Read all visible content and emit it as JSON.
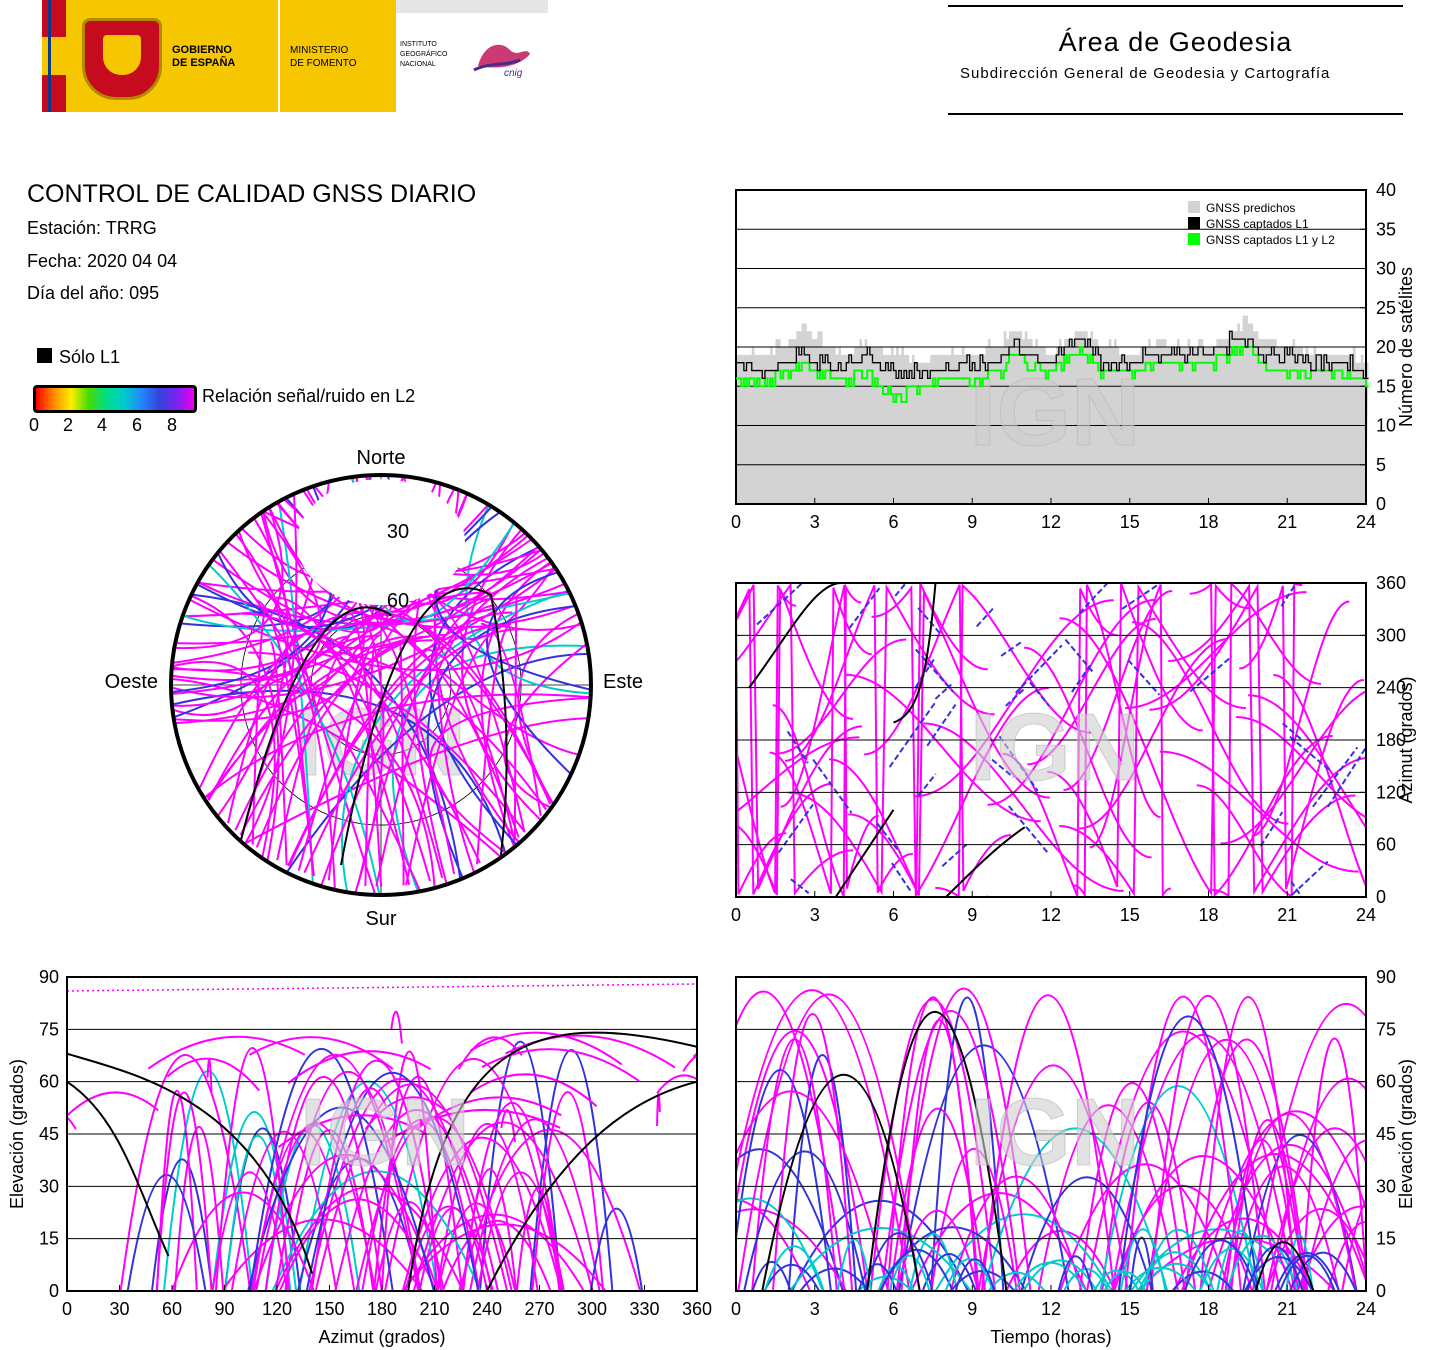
{
  "header": {
    "gob_line1": "GOBIERNO",
    "gob_line2": "DE ESPAÑA",
    "min_line1": "MINISTERIO",
    "min_line2": "DE FOMENTO",
    "ign_line1": "INSTITUTO",
    "ign_line2": "GEOGRÁFICO",
    "ign_line3": "NACIONAL",
    "cnig": "cnig",
    "area_title": "Área de Geodesia",
    "area_subtitle": "Subdirección General de Geodesia y Cartografía"
  },
  "report": {
    "title": "CONTROL DE CALIDAD GNSS DIARIO",
    "station": "Estación: TRRG",
    "date": "Fecha: 2020 04 04",
    "doy": "Día del año: 095"
  },
  "legend_main": {
    "l1_only": "Sólo L1",
    "snr_label": "Relación señal/ruido en L2",
    "snr_ticks": [
      "0",
      "2",
      "4",
      "6",
      "8"
    ],
    "colors": {
      "l1": "#000000",
      "l2_high": "#ff00ff",
      "l2_mid": "#3333dd",
      "l2_low": "#00cccc"
    }
  },
  "watermark": "IGN",
  "chart_data": [
    {
      "type": "area",
      "id": "satellites",
      "ylabel": "Número de satélites",
      "x_ticks": [
        "0",
        "3",
        "6",
        "9",
        "12",
        "15",
        "18",
        "21",
        "24"
      ],
      "y_ticks": [
        "0",
        "5",
        "10",
        "15",
        "20",
        "25",
        "30",
        "35",
        "40"
      ],
      "xlim": [
        0,
        24
      ],
      "ylim": [
        0,
        40
      ],
      "grid": true,
      "legend_position": "top-right",
      "series": [
        {
          "name": "GNSS predichos",
          "color": "#d3d3d3",
          "x": [
            0,
            1,
            2,
            2.5,
            3,
            4,
            5,
            6,
            7,
            8,
            9,
            10,
            10.7,
            11,
            12,
            13,
            14,
            15,
            16,
            17,
            18,
            19,
            19.5,
            20,
            21,
            22,
            23,
            24
          ],
          "y": [
            19,
            19,
            20,
            23,
            21,
            19,
            20,
            19,
            18,
            19,
            19,
            20,
            22,
            21,
            19,
            22,
            20,
            19,
            20,
            20,
            20,
            22,
            23,
            21,
            20,
            19,
            19,
            18
          ]
        },
        {
          "name": "GNSS captados L1",
          "color": "#000000",
          "x": [
            0,
            1,
            2,
            2.5,
            3,
            4,
            5,
            6,
            7,
            8,
            9,
            10,
            10.7,
            11,
            12,
            13,
            14,
            15,
            16,
            17,
            18,
            19,
            19.5,
            20,
            21,
            22,
            23,
            24
          ],
          "y": [
            18,
            17,
            18,
            19,
            18,
            17,
            19,
            17,
            17,
            17,
            18,
            18,
            21,
            19,
            18,
            21,
            18,
            18,
            19,
            19,
            19,
            21,
            21,
            19,
            19,
            18,
            18,
            17
          ]
        },
        {
          "name": "GNSS captados L1 y L2",
          "color": "#00ff00",
          "x": [
            0,
            1,
            2,
            2.5,
            3,
            4,
            5,
            6,
            7,
            8,
            9,
            10,
            10.7,
            11,
            12,
            13,
            14,
            15,
            16,
            17,
            18,
            19,
            19.5,
            20,
            21,
            22,
            23,
            24
          ],
          "y": [
            16,
            16,
            17,
            18,
            17,
            16,
            17,
            14,
            15,
            16,
            16,
            17,
            20,
            18,
            17,
            20,
            17,
            17,
            18,
            18,
            18,
            20,
            20,
            18,
            17,
            17,
            17,
            16
          ]
        }
      ]
    },
    {
      "type": "scatter",
      "id": "azimuth_time",
      "ylabel": "Azimut (grados)",
      "x_ticks": [
        "0",
        "3",
        "6",
        "9",
        "12",
        "15",
        "18",
        "21",
        "24"
      ],
      "y_ticks": [
        "0",
        "60",
        "120",
        "180",
        "240",
        "300",
        "360"
      ],
      "xlim": [
        0,
        24
      ],
      "ylim": [
        0,
        360
      ],
      "grid": true
    },
    {
      "type": "scatter",
      "id": "skyplot",
      "polar": true,
      "labels": {
        "north": "Norte",
        "south": "Sur",
        "west": "Oeste",
        "east": "Este"
      },
      "ring_labels": [
        "30",
        "60"
      ]
    },
    {
      "type": "scatter",
      "id": "elev_azimuth",
      "xlabel": "Azimut (grados)",
      "ylabel": "Elevación (grados)",
      "x_ticks": [
        "0",
        "30",
        "60",
        "90",
        "120",
        "150",
        "180",
        "210",
        "240",
        "270",
        "300",
        "330",
        "360"
      ],
      "y_ticks": [
        "0",
        "15",
        "30",
        "45",
        "60",
        "75",
        "90"
      ],
      "xlim": [
        0,
        360
      ],
      "ylim": [
        0,
        90
      ],
      "grid": true
    },
    {
      "type": "scatter",
      "id": "elev_time",
      "xlabel": "Tiempo (horas)",
      "ylabel": "Elevación (grados)",
      "x_ticks": [
        "0",
        "3",
        "6",
        "9",
        "12",
        "15",
        "18",
        "21",
        "24"
      ],
      "y_ticks": [
        "0",
        "15",
        "30",
        "45",
        "60",
        "75",
        "90"
      ],
      "xlim": [
        0,
        24
      ],
      "ylim": [
        0,
        90
      ],
      "grid": true
    }
  ]
}
